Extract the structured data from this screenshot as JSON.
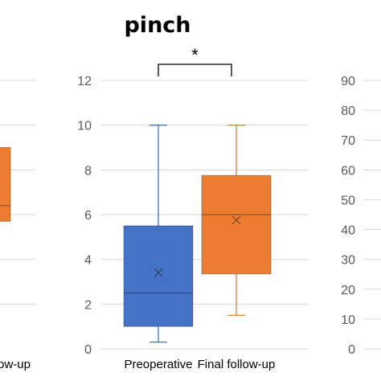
{
  "chart_data": [
    {
      "type": "box",
      "title": "",
      "categories": [
        "Final follow-up"
      ],
      "series": [
        {
          "color": "#ED7D31",
          "q1": 5.7,
          "median": 6.4,
          "q3": 9.0
        }
      ],
      "xlabel": "",
      "ylabel": "",
      "grid": true,
      "cropped": "left"
    },
    {
      "type": "box",
      "title": "pinch",
      "categories": [
        "Preoperative",
        "Final follow-up"
      ],
      "series": [
        {
          "color": "#4472C4",
          "min": 0.3,
          "q1": 1.0,
          "median": 2.5,
          "mean": 3.4,
          "q3": 5.5,
          "max": 10
        },
        {
          "color": "#ED7D31",
          "min": 1.5,
          "q1": 3.35,
          "median": 6.0,
          "mean": 5.75,
          "q3": 7.75,
          "max": 10
        }
      ],
      "yticks": [
        "0",
        "2",
        "4",
        "6",
        "8",
        "10",
        "12"
      ],
      "ylim": [
        0,
        12
      ],
      "xlabel": "",
      "ylabel": "",
      "grid": true,
      "annotation": "*"
    },
    {
      "type": "box",
      "title": "",
      "categories": [],
      "series": [],
      "yticks": [
        "0",
        "10",
        "20",
        "30",
        "40",
        "50",
        "60",
        "70",
        "80",
        "90"
      ],
      "ylim": [
        0,
        90
      ],
      "xlabel": "",
      "ylabel": "",
      "grid": true,
      "cropped": "right"
    }
  ]
}
